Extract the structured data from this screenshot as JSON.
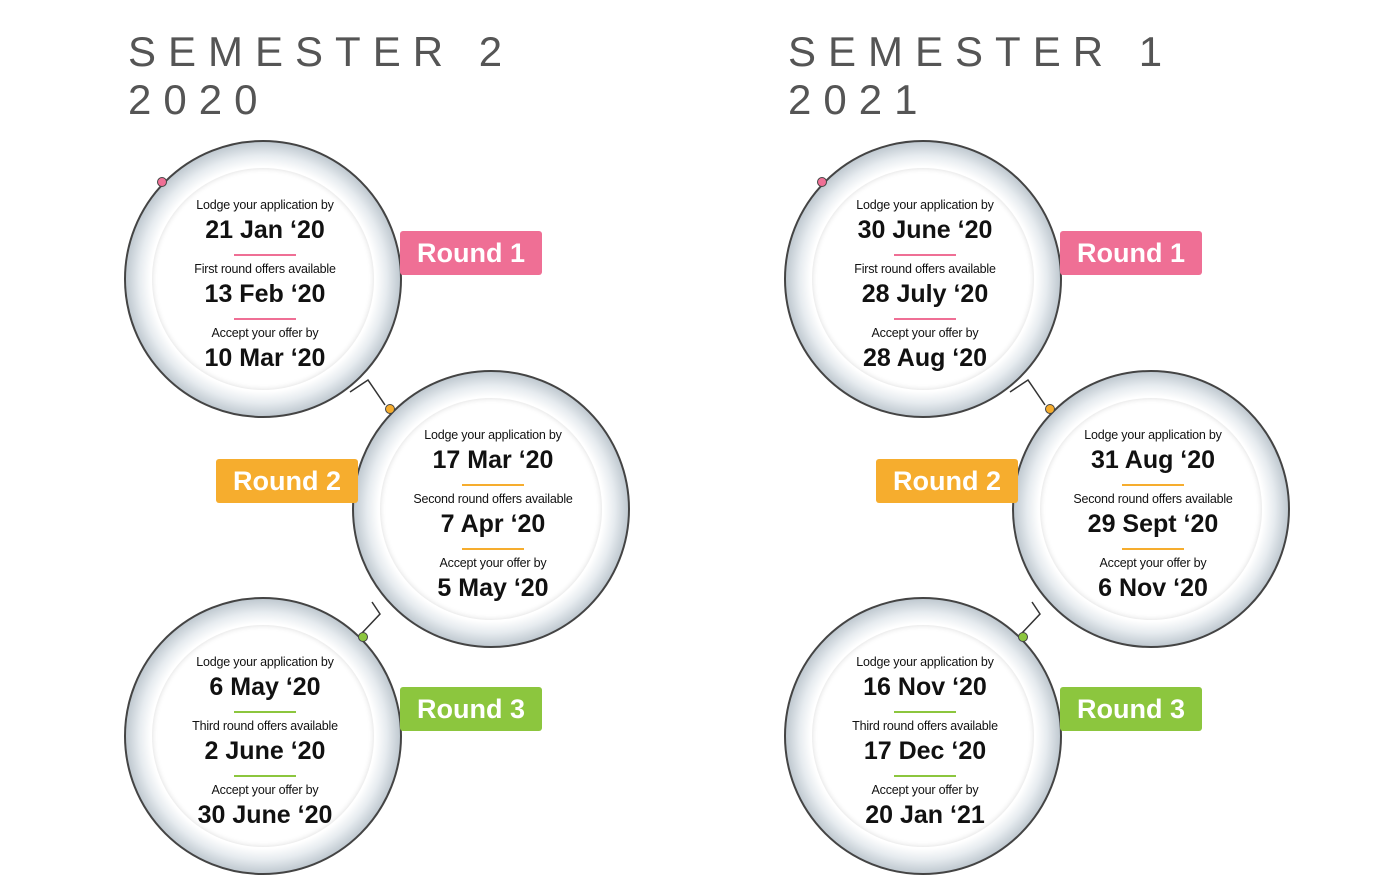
{
  "colors": {
    "round1": "#ef6f95",
    "round2": "#f6ad2e",
    "round3": "#8cc63e"
  },
  "semesters": [
    {
      "title": "SEMESTER 2 2020",
      "rounds": [
        {
          "badge": "Round 1",
          "lodge_label": "Lodge your application by",
          "lodge_date": "21 Jan ‘20",
          "offers_label": "First round offers available",
          "offers_date": "13 Feb ‘20",
          "accept_label": "Accept your offer by",
          "accept_date": "10 Mar ‘20"
        },
        {
          "badge": "Round 2",
          "lodge_label": "Lodge your application by",
          "lodge_date": "17 Mar ‘20",
          "offers_label": "Second round offers available",
          "offers_date": "7 Apr ‘20",
          "accept_label": "Accept your offer by",
          "accept_date": "5 May ‘20"
        },
        {
          "badge": "Round 3",
          "lodge_label": "Lodge your application by",
          "lodge_date": "6 May ‘20",
          "offers_label": "Third round offers available",
          "offers_date": "2 June ‘20",
          "accept_label": "Accept your offer by",
          "accept_date": "30 June ‘20"
        }
      ]
    },
    {
      "title": "SEMESTER 1 2021",
      "rounds": [
        {
          "badge": "Round 1",
          "lodge_label": "Lodge your application by",
          "lodge_date": "30 June ‘20",
          "offers_label": "First round offers available",
          "offers_date": "28 July ‘20",
          "accept_label": "Accept your offer by",
          "accept_date": "28 Aug ‘20"
        },
        {
          "badge": "Round 2",
          "lodge_label": "Lodge your application by",
          "lodge_date": "31 Aug ‘20",
          "offers_label": "Second round offers available",
          "offers_date": "29 Sept ‘20",
          "accept_label": "Accept your offer by",
          "accept_date": "6 Nov ‘20"
        },
        {
          "badge": "Round 3",
          "lodge_label": "Lodge your application by",
          "lodge_date": "16 Nov ‘20",
          "offers_label": "Third round offers available",
          "offers_date": "17 Dec ‘20",
          "accept_label": "Accept your offer by",
          "accept_date": "20 Jan ‘21"
        }
      ]
    }
  ]
}
